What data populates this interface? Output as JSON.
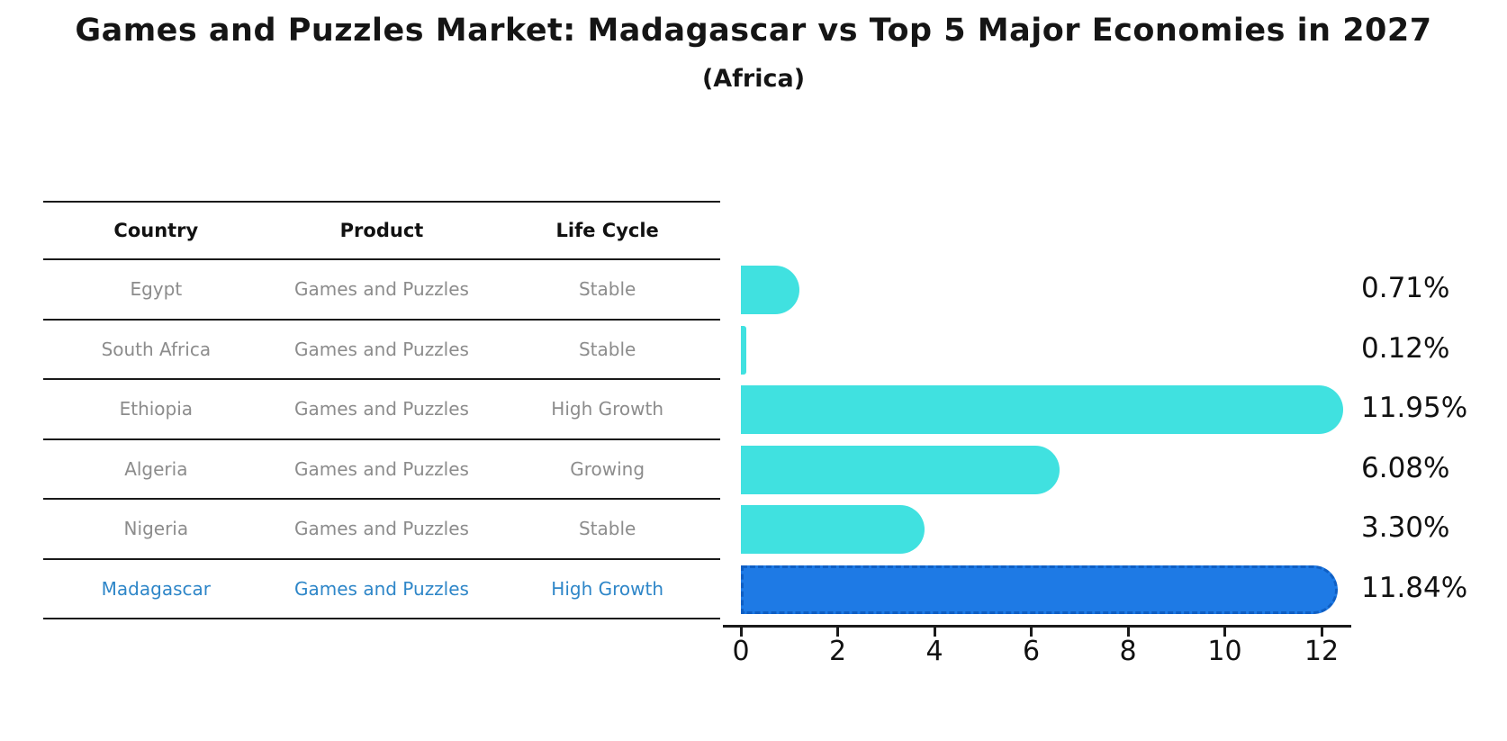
{
  "title": "Games and Puzzles Market: Madagascar vs Top 5 Major Economies in 2027",
  "subtitle": "(Africa)",
  "table": {
    "headers": [
      "Country",
      "Product",
      "Life Cycle"
    ],
    "rows": [
      {
        "country": "Egypt",
        "product": "Games and Puzzles",
        "life_cycle": "Stable",
        "highlight": false
      },
      {
        "country": "South Africa",
        "product": "Games and Puzzles",
        "life_cycle": "Stable",
        "highlight": false
      },
      {
        "country": "Ethiopia",
        "product": "Games and Puzzles",
        "life_cycle": "High Growth",
        "highlight": false
      },
      {
        "country": "Algeria",
        "product": "Games and Puzzles",
        "life_cycle": "Growing",
        "highlight": false
      },
      {
        "country": "Nigeria",
        "product": "Games and Puzzles",
        "life_cycle": "Stable",
        "highlight": false
      },
      {
        "country": "Madagascar",
        "product": "Games and Puzzles",
        "life_cycle": "High Growth",
        "highlight": true
      }
    ]
  },
  "chart_data": {
    "type": "bar",
    "orientation": "horizontal",
    "categories": [
      "Egypt",
      "South Africa",
      "Ethiopia",
      "Algeria",
      "Nigeria",
      "Madagascar"
    ],
    "values": [
      0.71,
      0.12,
      11.95,
      6.08,
      3.3,
      11.84
    ],
    "value_labels": [
      "0.71%",
      "0.12%",
      "11.95%",
      "6.08%",
      "3.30%",
      "11.84%"
    ],
    "title": "Games and Puzzles Market: Madagascar vs Top 5 Major Economies in 2027 (Africa)",
    "xlabel": "",
    "ylabel": "",
    "xlim": [
      0,
      12.6
    ],
    "x_ticks": [
      0,
      2,
      4,
      6,
      8,
      10,
      12
    ],
    "x_tick_labels": [
      "0",
      "2",
      "4",
      "6",
      "8",
      "10",
      "12"
    ],
    "grid": false,
    "legend": false,
    "highlight_index": 5
  },
  "colors": {
    "bar": "#40e1e0",
    "highlight_bar": "#1e7ae5",
    "highlight_bar_border": "#0f5fc4",
    "highlight_text": "#2e86c8",
    "row_text": "#8c8c8c",
    "line": "#1a1a1a",
    "text": "#111111"
  }
}
